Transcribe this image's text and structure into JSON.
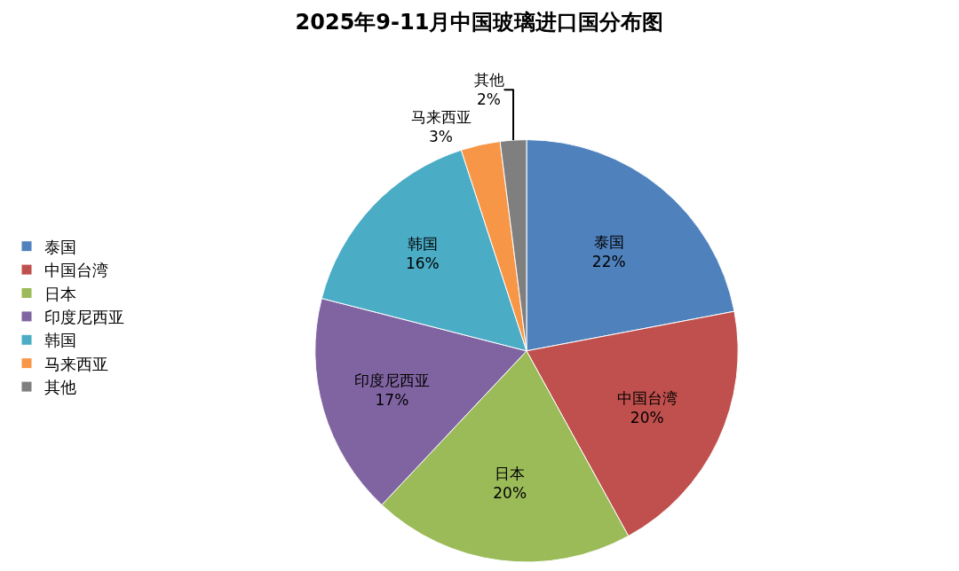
{
  "chart_data": {
    "type": "pie",
    "title": "2025年9-11月中国玻璃进口国分布图",
    "categories": [
      "泰国",
      "中国台湾",
      "日本",
      "印度尼西亚",
      "韩国",
      "马来西亚",
      "其他"
    ],
    "values": [
      22,
      20,
      20,
      17,
      16,
      3,
      2
    ],
    "value_labels": [
      "22%",
      "20%",
      "20%",
      "17%",
      "16%",
      "3%",
      "2%"
    ],
    "colors": [
      "#4f81bd",
      "#c0504d",
      "#9bbb59",
      "#8064a2",
      "#4bacc6",
      "#f79646",
      "#7f7f7f"
    ],
    "legend": "left"
  }
}
